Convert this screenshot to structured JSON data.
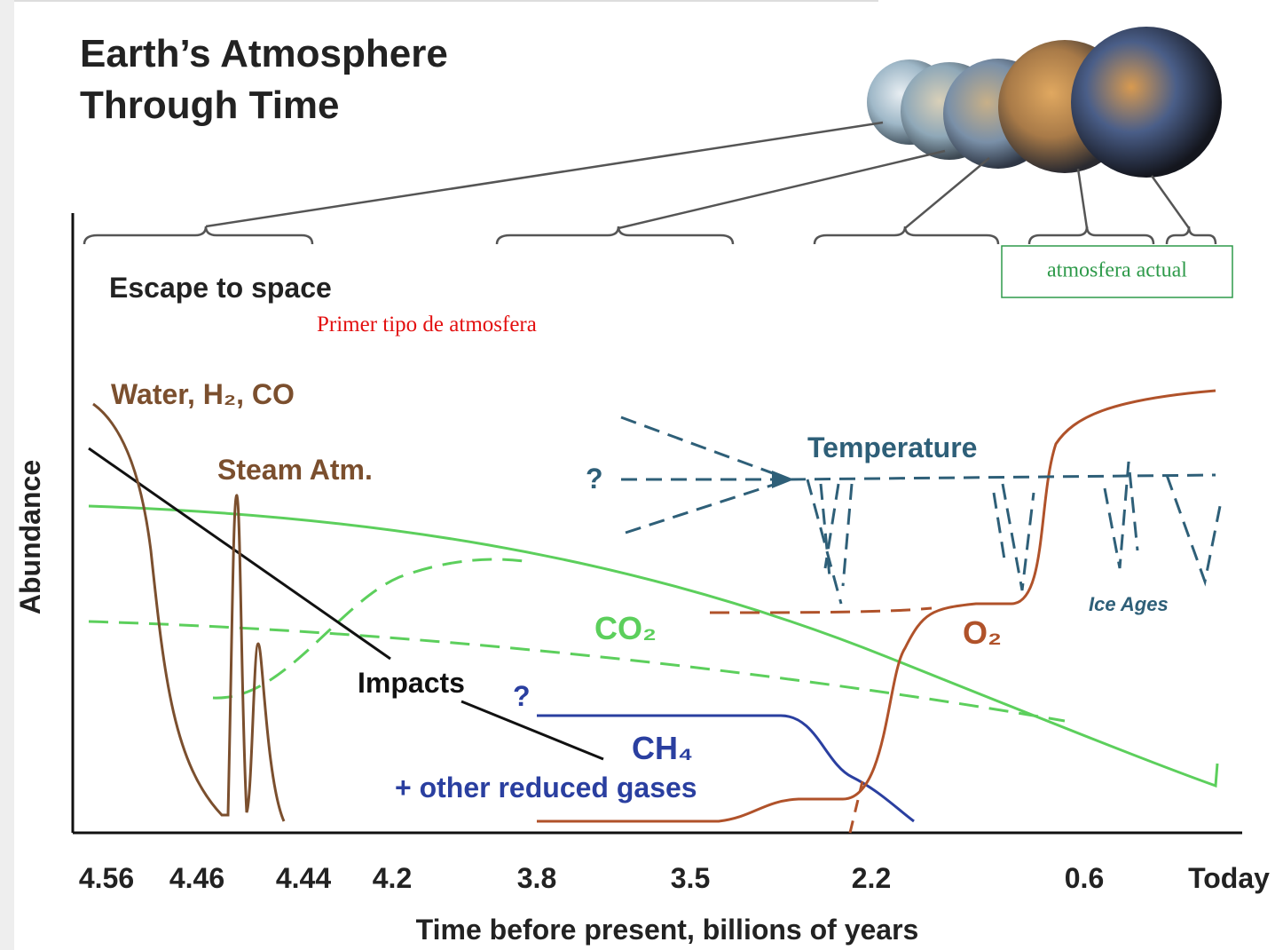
{
  "title": [
    "Earth’s Atmosphere",
    "Through Time"
  ],
  "labels": {
    "escape": "Escape to space",
    "primer": "Primer tipo de atmosfera",
    "actual": "atmosfera actual",
    "water": "Water, H₂, CO",
    "steam": "Steam Atm.",
    "temperature": "Temperature",
    "question_temp": "?",
    "ice": "Ice Ages",
    "co2": "CO₂",
    "o2": "O₂",
    "impacts": "Impacts",
    "question_ch4": "?",
    "ch4": "CH₄",
    "reduced": "+ other reduced gases"
  },
  "y_axis_label": "Abundance",
  "x_axis_label": "Time before present, billions of years",
  "x_ticks": [
    "4.56",
    "4.46",
    "4.44",
    "4.2",
    "3.8",
    "3.5",
    "2.2",
    "0.6",
    "Today"
  ]
}
